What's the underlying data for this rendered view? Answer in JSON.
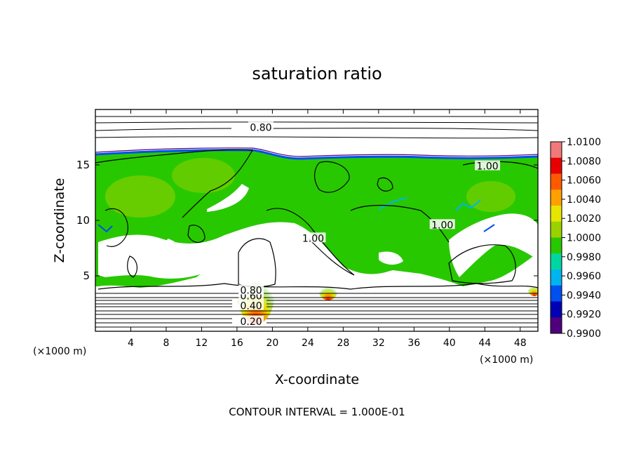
{
  "chart_data": {
    "type": "heatmap",
    "title": "saturation ratio",
    "xlabel": "X-coordinate",
    "ylabel": "Z-coordinate",
    "x_unit": "(×1000 m)",
    "y_unit": "(×1000 m)",
    "xlim": [
      0,
      50
    ],
    "ylim": [
      0,
      20
    ],
    "x_ticks": [
      4,
      8,
      12,
      16,
      20,
      24,
      28,
      32,
      36,
      40,
      44,
      48
    ],
    "y_ticks": [
      5,
      10,
      15
    ],
    "footer": "CONTOUR INTERVAL = 1.000E-01",
    "colorbar": {
      "min": 0.99,
      "max": 1.01,
      "labels": [
        "1.0100",
        "1.0080",
        "1.0060",
        "1.0040",
        "1.0020",
        "1.0000",
        "0.9980",
        "0.9960",
        "0.9940",
        "0.9920",
        "0.9900"
      ],
      "colors": [
        "#f07a7a",
        "#e80000",
        "#ff5a00",
        "#ffa000",
        "#e6e600",
        "#9ad200",
        "#28c800",
        "#00d7a0",
        "#00b4f0",
        "#0050f0",
        "#0000b4",
        "#50007d"
      ]
    },
    "contour_labels": [
      {
        "text": "0.80",
        "x": 18.7,
        "z": 18.4
      },
      {
        "text": "1.00",
        "x": 44.3,
        "z": 14.9
      },
      {
        "text": "1.00",
        "x": 24.6,
        "z": 8.4
      },
      {
        "text": "1.00",
        "x": 39.2,
        "z": 9.6
      },
      {
        "text": "0.20",
        "x": 17.6,
        "z": 0.9
      },
      {
        "text": "0.40",
        "x": 17.6,
        "z": 2.3
      },
      {
        "text": "0.60",
        "x": 17.6,
        "z": 3.2
      },
      {
        "text": "0.80",
        "x": 17.6,
        "z": 3.7
      }
    ],
    "grid": false
  }
}
